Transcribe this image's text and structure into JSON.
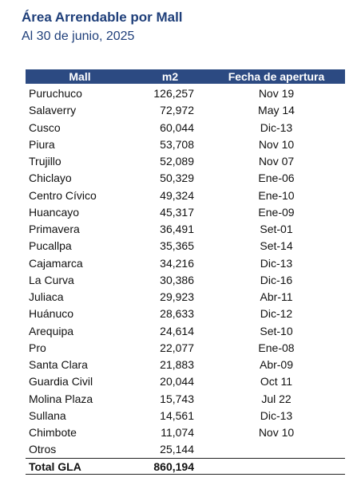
{
  "header": {
    "title": "Área Arrendable por Mall",
    "subtitle": "Al 30 de junio, 2025"
  },
  "table": {
    "columns": [
      "Mall",
      "m2",
      "Fecha de apertura"
    ],
    "rows": [
      [
        "Puruchuco",
        "126,257",
        "Nov 19"
      ],
      [
        "Salaverry",
        "72,972",
        "May 14"
      ],
      [
        "Cusco",
        "60,044",
        "Dic-13"
      ],
      [
        "Piura",
        "53,708",
        "Nov 10"
      ],
      [
        "Trujillo",
        "52,089",
        "Nov 07"
      ],
      [
        "Chiclayo",
        "50,329",
        "Ene-06"
      ],
      [
        "Centro Cívico",
        "49,324",
        "Ene-10"
      ],
      [
        "Huancayo",
        "45,317",
        "Ene-09"
      ],
      [
        "Primavera",
        "36,491",
        "Set-01"
      ],
      [
        "Pucallpa",
        "35,365",
        "Set-14"
      ],
      [
        "Cajamarca",
        "34,216",
        "Dic-13"
      ],
      [
        "La Curva",
        "30,386",
        "Dic-16"
      ],
      [
        "Juliaca",
        "29,923",
        "Abr-11"
      ],
      [
        "Huánuco",
        "28,633",
        "Dic-12"
      ],
      [
        "Arequipa",
        "24,614",
        "Set-10"
      ],
      [
        "Pro",
        "22,077",
        "Ene-08"
      ],
      [
        "Santa Clara",
        "21,883",
        "Abr-09"
      ],
      [
        "Guardia Civil",
        "20,044",
        "Oct 11"
      ],
      [
        "Molina Plaza",
        "15,743",
        "Jul 22"
      ],
      [
        "Sullana",
        "14,561",
        "Dic-13"
      ],
      [
        "Chimbote",
        "11,074",
        "Nov 10"
      ],
      [
        "Otros",
        "25,144"
      ]
    ],
    "total": [
      "Total GLA",
      "860,194"
    ]
  }
}
